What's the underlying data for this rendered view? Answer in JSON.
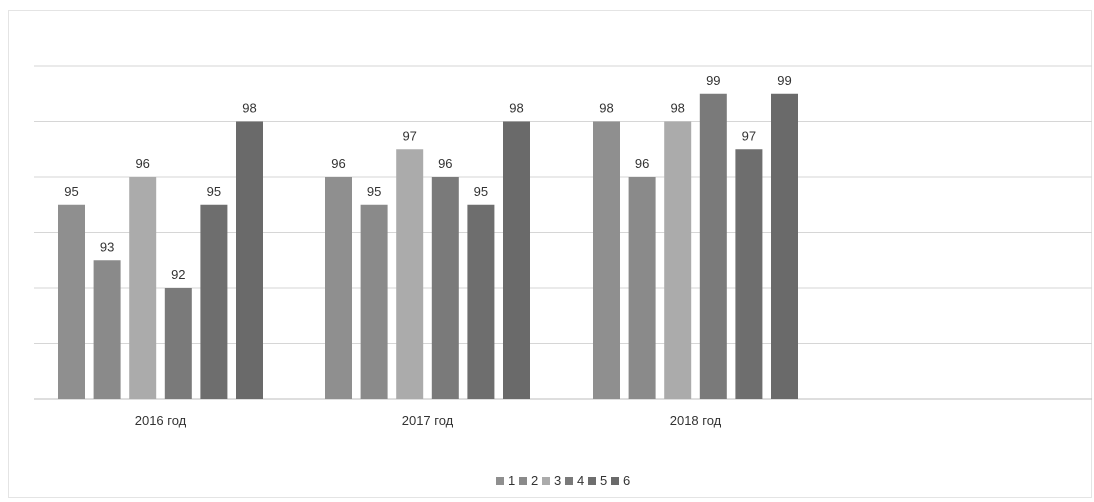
{
  "chart_data": {
    "type": "bar",
    "title": "",
    "xlabel": "",
    "ylabel": "",
    "ylim": [
      88,
      100
    ],
    "grid": true,
    "legend_position": "bottom",
    "categories": [
      "2016 год",
      "2017 год",
      "2018 год"
    ],
    "series": [
      {
        "name": "1",
        "values": [
          95,
          96,
          98
        ],
        "color": "#8f8f8f"
      },
      {
        "name": "2",
        "values": [
          93,
          95,
          96
        ],
        "color": "#8a8a8a"
      },
      {
        "name": "3",
        "values": [
          96,
          97,
          98
        ],
        "color": "#ababab"
      },
      {
        "name": "4",
        "values": [
          92,
          96,
          99
        ],
        "color": "#7a7a7a"
      },
      {
        "name": "5",
        "values": [
          95,
          95,
          97
        ],
        "color": "#6e6e6e"
      },
      {
        "name": "6",
        "values": [
          98,
          98,
          99
        ],
        "color": "#6a6a6a"
      }
    ]
  }
}
